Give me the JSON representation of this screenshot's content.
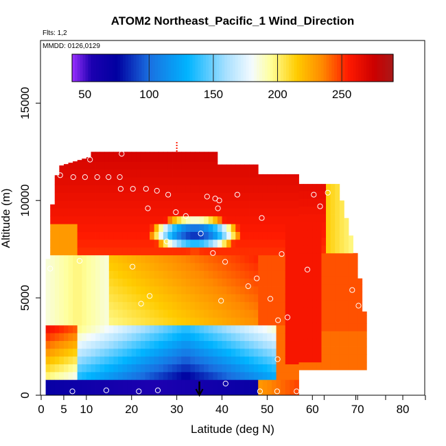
{
  "chart_data": {
    "type": "heatmap",
    "title": "ATOM2 Northeast_Pacific_1 Wind_Direction",
    "flights_note": "Flts: 1,2",
    "dates_note": "MMDD: 0126,0129",
    "xlabel": "Latitude (deg N)",
    "ylabel": "Altitude (m)",
    "xlim": [
      0,
      85
    ],
    "ylim": [
      0,
      18000
    ],
    "x_ticks": [
      0,
      5,
      10,
      20,
      30,
      40,
      50,
      60,
      70,
      80
    ],
    "x_ticks_minor": [
      85
    ],
    "y_ticks": [
      0,
      5000,
      10000,
      15000
    ],
    "colorbar": {
      "range": [
        40,
        290
      ],
      "ticks": [
        50,
        100,
        150,
        200,
        250
      ],
      "stops": [
        {
          "v": 40,
          "color": "#9b30ff"
        },
        {
          "v": 55,
          "color": "#1c00b0"
        },
        {
          "v": 75,
          "color": "#0000a0"
        },
        {
          "v": 100,
          "color": "#1a6fe0"
        },
        {
          "v": 130,
          "color": "#00b4ff"
        },
        {
          "v": 160,
          "color": "#a8e0ff"
        },
        {
          "v": 180,
          "color": "#f4fbff"
        },
        {
          "v": 195,
          "color": "#ffff99"
        },
        {
          "v": 215,
          "color": "#ffcc00"
        },
        {
          "v": 235,
          "color": "#ff8800"
        },
        {
          "v": 255,
          "color": "#ff1a00"
        },
        {
          "v": 275,
          "color": "#cc0000"
        },
        {
          "v": 290,
          "color": "#a81818"
        }
      ]
    },
    "sample_points": [
      [
        6.9,
        200
      ],
      [
        14.4,
        250
      ],
      [
        21.6,
        200
      ],
      [
        25.8,
        250
      ],
      [
        40.8,
        600
      ],
      [
        48.4,
        200
      ],
      [
        52.2,
        200
      ],
      [
        56.5,
        200
      ],
      [
        70.0,
        650
      ],
      [
        2.0,
        6500
      ],
      [
        8.5,
        6900
      ],
      [
        20.2,
        6600
      ],
      [
        22.1,
        4700
      ],
      [
        24.0,
        5100
      ],
      [
        39.8,
        4850
      ],
      [
        45.8,
        5600
      ],
      [
        47.7,
        6000
      ],
      [
        50.7,
        4950
      ],
      [
        52.4,
        3850
      ],
      [
        54.5,
        4000
      ],
      [
        52.3,
        1850
      ],
      [
        68.8,
        5400
      ],
      [
        70.2,
        4600
      ],
      [
        27.8,
        7900
      ],
      [
        35.3,
        8300
      ],
      [
        38.0,
        7300
      ],
      [
        40.7,
        6850
      ],
      [
        53.2,
        7250
      ],
      [
        58.9,
        6450
      ],
      [
        10.8,
        12100
      ],
      [
        17.8,
        12400
      ],
      [
        4.2,
        11300
      ],
      [
        7.1,
        11200
      ],
      [
        9.7,
        11200
      ],
      [
        12.4,
        11200
      ],
      [
        14.9,
        11200
      ],
      [
        17.4,
        11200
      ],
      [
        17.6,
        10600
      ],
      [
        20.3,
        10600
      ],
      [
        23.2,
        10600
      ],
      [
        25.6,
        10500
      ],
      [
        23.6,
        9600
      ],
      [
        28.1,
        10300
      ],
      [
        29.8,
        9400
      ],
      [
        32.0,
        9200
      ],
      [
        36.7,
        10200
      ],
      [
        38.5,
        10100
      ],
      [
        39.4,
        10000
      ],
      [
        39.1,
        9600
      ],
      [
        43.4,
        10300
      ],
      [
        48.8,
        9100
      ],
      [
        60.3,
        10300
      ],
      [
        61.7,
        9700
      ],
      [
        63.4,
        10400
      ]
    ],
    "markers": [
      {
        "label": "arrow",
        "x": 35,
        "y": 500
      },
      {
        "label": "dashes",
        "x": 30,
        "y": 12500
      }
    ]
  }
}
